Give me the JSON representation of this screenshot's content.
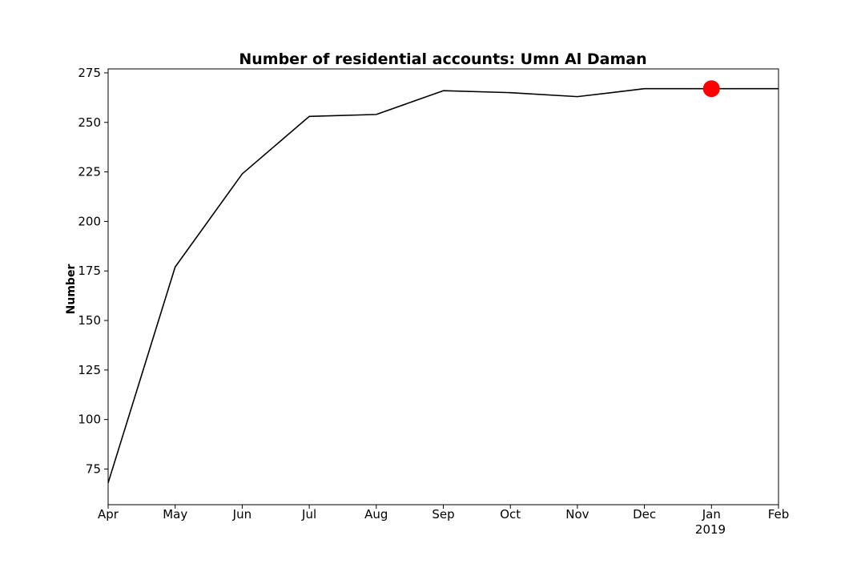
{
  "chart_data": {
    "type": "line",
    "title": "Number of residential accounts: Umn Al Daman",
    "xlabel": "",
    "ylabel": "Number",
    "x": [
      "2018-04",
      "2018-05",
      "2018-06",
      "2018-07",
      "2018-08",
      "2018-09",
      "2018-10",
      "2018-11",
      "2018-12",
      "2019-01",
      "2019-02"
    ],
    "x_tick_labels": [
      "Apr",
      "May",
      "Jun",
      "Jul",
      "Aug",
      "Sep",
      "Oct",
      "Nov",
      "Dec",
      "Jan",
      "Feb"
    ],
    "x_year_label": "2019",
    "y_ticks": [
      75,
      100,
      125,
      150,
      175,
      200,
      225,
      250,
      275
    ],
    "ylim": [
      57,
      277
    ],
    "grid": false,
    "series": [
      {
        "values": [
          68,
          177,
          224,
          253,
          254,
          266,
          265,
          263,
          267,
          267,
          267
        ],
        "color": "#000000"
      }
    ],
    "highlight": {
      "x": "2019-01",
      "value": 267,
      "color": "#ff0000"
    }
  }
}
